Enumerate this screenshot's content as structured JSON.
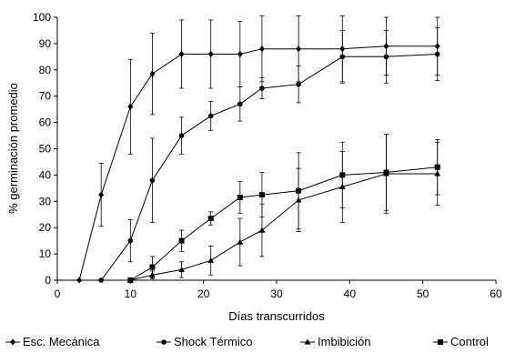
{
  "chart_data": {
    "type": "line",
    "title": "",
    "xlabel": "Días transcurridos",
    "ylabel": "% germinación promedio",
    "xlim": [
      0,
      60
    ],
    "ylim": [
      0,
      100
    ],
    "xticks": [
      0,
      10,
      20,
      30,
      40,
      50,
      60
    ],
    "yticks": [
      0,
      10,
      20,
      30,
      40,
      50,
      60,
      70,
      80,
      90,
      100
    ],
    "grid": false,
    "legend_position": "bottom",
    "error_bars": true,
    "series": [
      {
        "name": "Esc. Mecánica",
        "marker": "diamond",
        "points": [
          {
            "x": 3,
            "y": 0,
            "err": 0
          },
          {
            "x": 6,
            "y": 32.5,
            "err": 12
          },
          {
            "x": 10,
            "y": 66,
            "err": 18
          },
          {
            "x": 13,
            "y": 78.5,
            "err": 15.5
          },
          {
            "x": 17,
            "y": 86,
            "err": 13
          },
          {
            "x": 21,
            "y": 86,
            "err": 13
          },
          {
            "x": 25,
            "y": 86,
            "err": 12.5
          },
          {
            "x": 28,
            "y": 88,
            "err": 12.5
          },
          {
            "x": 33,
            "y": 88,
            "err": 12.5
          },
          {
            "x": 39,
            "y": 88,
            "err": 12.5
          },
          {
            "x": 45,
            "y": 89,
            "err": 11
          },
          {
            "x": 52,
            "y": 89,
            "err": 11
          }
        ]
      },
      {
        "name": "Shock Térmico",
        "marker": "circle",
        "points": [
          {
            "x": 6,
            "y": 0,
            "err": 0
          },
          {
            "x": 10,
            "y": 15,
            "err": 8
          },
          {
            "x": 13,
            "y": 38,
            "err": 16
          },
          {
            "x": 17,
            "y": 55,
            "err": 7
          },
          {
            "x": 21,
            "y": 62.5,
            "err": 5.5
          },
          {
            "x": 25,
            "y": 67,
            "err": 6.5
          },
          {
            "x": 28,
            "y": 73,
            "err": 4
          },
          {
            "x": 33,
            "y": 74.5,
            "err": 7
          },
          {
            "x": 39,
            "y": 85,
            "err": 10
          },
          {
            "x": 45,
            "y": 85,
            "err": 10
          },
          {
            "x": 52,
            "y": 86,
            "err": 10
          }
        ]
      },
      {
        "name": "Imbibición",
        "marker": "triangle",
        "points": [
          {
            "x": 10,
            "y": 0,
            "err": 0
          },
          {
            "x": 13,
            "y": 2,
            "err": 1.5
          },
          {
            "x": 17,
            "y": 4,
            "err": 3
          },
          {
            "x": 21,
            "y": 7.5,
            "err": 5.5
          },
          {
            "x": 25,
            "y": 14.5,
            "err": 9
          },
          {
            "x": 28,
            "y": 19,
            "err": 10
          },
          {
            "x": 33,
            "y": 30.5,
            "err": 12
          },
          {
            "x": 39,
            "y": 35.5,
            "err": 13.5
          },
          {
            "x": 45,
            "y": 40.5,
            "err": 15
          },
          {
            "x": 52,
            "y": 40.5,
            "err": 12
          }
        ]
      },
      {
        "name": "Control",
        "marker": "square",
        "points": [
          {
            "x": 10,
            "y": 0,
            "err": 0
          },
          {
            "x": 13,
            "y": 5,
            "err": 4
          },
          {
            "x": 17,
            "y": 15,
            "err": 4
          },
          {
            "x": 21,
            "y": 23.5,
            "err": 2.5
          },
          {
            "x": 25,
            "y": 31.5,
            "err": 6
          },
          {
            "x": 28,
            "y": 32.5,
            "err": 8.5
          },
          {
            "x": 33,
            "y": 34,
            "err": 14.5
          },
          {
            "x": 39,
            "y": 40,
            "err": 12.5
          },
          {
            "x": 45,
            "y": 41,
            "err": 14.5
          },
          {
            "x": 52,
            "y": 43,
            "err": 10.5
          }
        ]
      }
    ]
  }
}
